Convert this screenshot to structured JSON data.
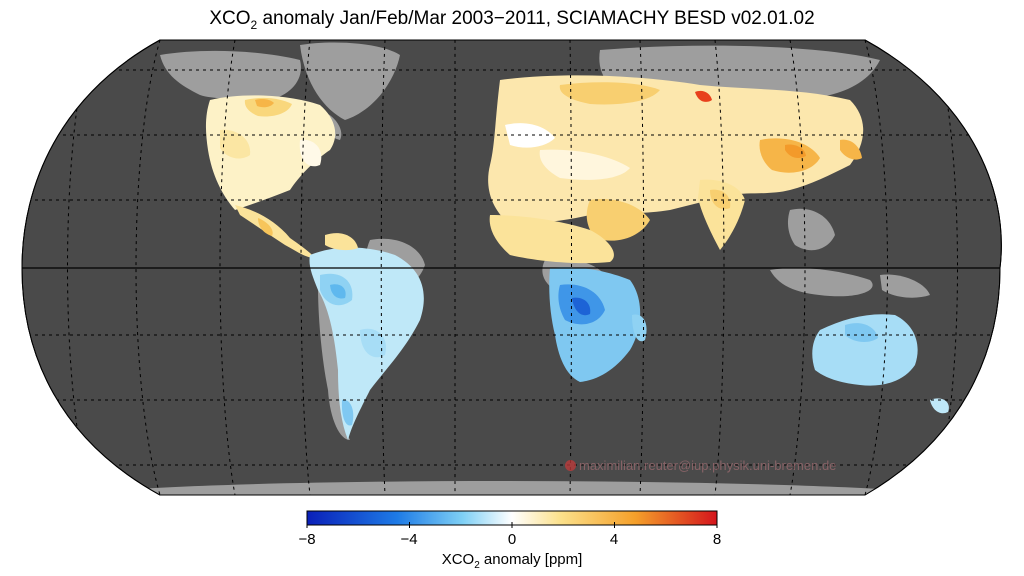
{
  "title": {
    "prefix": "XCO",
    "subscript": "2",
    "rest": " anomaly Jan/Feb/Mar 2003−2011, SCIAMACHY BESD v02.01.02"
  },
  "watermark": {
    "text": "maximilian.reuter@iup.physik.uni-bremen.de",
    "icon": "copyright-icon"
  },
  "colorbar": {
    "ticks": [
      "−8",
      "−4",
      "0",
      "4",
      "8"
    ],
    "label_prefix": "XCO",
    "label_subscript": "2",
    "label_rest": " anomaly [ppm]",
    "colors": [
      "#0a1fb8",
      "#1e7be6",
      "#7fd0f5",
      "#ffffff",
      "#fbe08a",
      "#f5a02a",
      "#d4141c"
    ]
  },
  "map": {
    "ocean_color": "#4a4a4a",
    "no_data_land_color": "#9e9e9e",
    "grid": true
  }
}
